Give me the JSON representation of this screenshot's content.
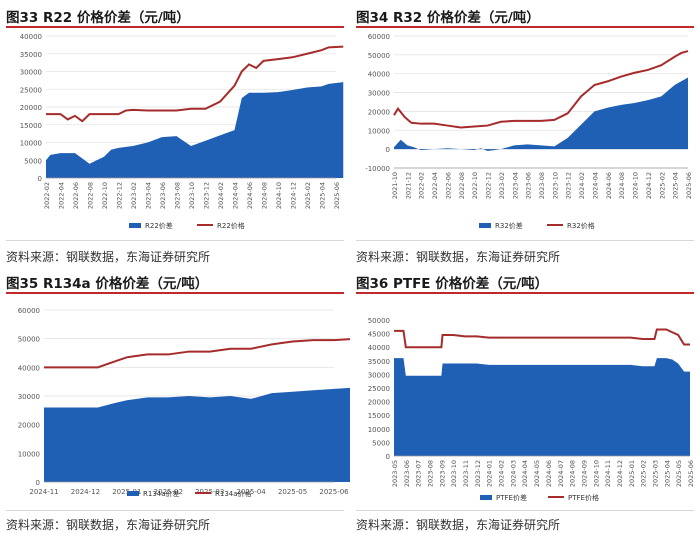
{
  "colors": {
    "area": "#1f5fb4",
    "line": "#a62b2b",
    "title_rule": "#c0292b"
  },
  "chart_data": [
    {
      "type": "area",
      "title": "图33  R22 价格价差（元/吨）",
      "source": "资料来源：钢联数据，东海证券研究所",
      "ylim": [
        0,
        40000
      ],
      "yticks": [
        "40000",
        "35000",
        "30000",
        "25000",
        "20000",
        "15000",
        "10000",
        "5000",
        "0"
      ],
      "xticks": [
        "2022-02",
        "2022-04",
        "2022-06",
        "2022-08",
        "2022-10",
        "2022-12",
        "2023-02",
        "2023-04",
        "2023-06",
        "2023-08",
        "2023-10",
        "2023-12",
        "2024-02",
        "2024-04",
        "2024-06",
        "2024-08",
        "2024-10",
        "2024-12",
        "2025-02",
        "2025-04",
        "2025-06"
      ],
      "grid": true,
      "legend_position": "bottom",
      "series": [
        {
          "name": "R22价差",
          "kind": "area",
          "x": [
            0,
            0.3,
            1,
            2,
            3,
            4,
            4.5,
            5,
            6,
            7,
            8,
            9,
            10,
            11,
            12,
            13,
            13.5,
            14,
            15,
            16,
            17,
            18,
            19,
            19.5,
            20.5
          ],
          "values": [
            5000,
            6500,
            7000,
            7000,
            4000,
            6000,
            8000,
            8500,
            9000,
            10000,
            11500,
            11800,
            9000,
            10500,
            12000,
            13500,
            22500,
            24000,
            24000,
            24200,
            24800,
            25500,
            25800,
            26500,
            27000
          ]
        },
        {
          "name": "R22价格",
          "kind": "line",
          "x": [
            0,
            1,
            1.5,
            2,
            2.5,
            3,
            4,
            5,
            5.5,
            6,
            7,
            8,
            9,
            10,
            11,
            12,
            13,
            13.5,
            14,
            14.5,
            15,
            16,
            17,
            18,
            19,
            19.5,
            20.5
          ],
          "values": [
            18000,
            18000,
            16500,
            17500,
            16000,
            18000,
            18000,
            18000,
            19000,
            19200,
            19000,
            19000,
            19000,
            19500,
            19500,
            21500,
            26000,
            30000,
            32000,
            31000,
            33000,
            33500,
            34000,
            35000,
            36000,
            36800,
            37000
          ]
        }
      ]
    },
    {
      "type": "area",
      "title": "图34  R32 价格价差（元/吨）",
      "source": "资料来源：钢联数据，东海证券研究所",
      "ylim": [
        -10000,
        60000
      ],
      "yticks": [
        "60000",
        "50000",
        "40000",
        "30000",
        "20000",
        "10000",
        "0",
        "-10000"
      ],
      "xticks": [
        "2021-10",
        "2021-12",
        "2022-02",
        "2022-04",
        "2022-06",
        "2022-08",
        "2022-10",
        "2022-12",
        "2023-02",
        "2023-04",
        "2023-06",
        "2023-08",
        "2023-10",
        "2023-12",
        "2024-02",
        "2024-04",
        "2024-06",
        "2024-08",
        "2024-10",
        "2024-12",
        "2025-02",
        "2025-04",
        "2025-06"
      ],
      "grid": true,
      "legend_position": "bottom",
      "series": [
        {
          "name": "R32价差",
          "kind": "area",
          "x": [
            0,
            0.5,
            1,
            1.5,
            2,
            3,
            4,
            5,
            6,
            6.5,
            7,
            7.5,
            8,
            9,
            10,
            11,
            12,
            13,
            14,
            15,
            16,
            17,
            18,
            19,
            20,
            21,
            22
          ],
          "values": [
            1000,
            5000,
            2000,
            1000,
            -500,
            0,
            500,
            0,
            -500,
            500,
            -1000,
            -500,
            0,
            2000,
            2500,
            2000,
            1500,
            6000,
            13000,
            20000,
            22000,
            23500,
            24500,
            26000,
            28000,
            34000,
            38000
          ]
        },
        {
          "name": "R32价格",
          "kind": "line",
          "x": [
            0,
            0.3,
            0.8,
            1.3,
            2,
            3,
            4,
            5,
            6,
            7,
            8,
            9,
            10,
            11,
            12,
            13,
            14,
            15,
            16,
            17,
            18,
            19,
            20,
            21,
            21.5,
            22
          ],
          "values": [
            18000,
            21500,
            17000,
            14000,
            13500,
            13500,
            12500,
            11500,
            12000,
            12500,
            14500,
            15000,
            15000,
            15000,
            15500,
            19000,
            28000,
            34000,
            36000,
            38500,
            40500,
            42000,
            44500,
            49000,
            51000,
            52000
          ]
        }
      ]
    },
    {
      "type": "area",
      "title": "图35  R134a 价格价差（元/吨）",
      "source": "资料来源：钢联数据，东海证券研究所",
      "ylim": [
        0,
        60000
      ],
      "yticks": [
        "60000",
        "50000",
        "40000",
        "30000",
        "20000",
        "10000",
        "0"
      ],
      "xticks": [
        "2024-11",
        "2024-12",
        "2025-01",
        "2025-02",
        "2025-03",
        "2025-04",
        "2025-05",
        "2025-06"
      ],
      "grid": true,
      "legend_position": "bottom",
      "series": [
        {
          "name": "R134a价差",
          "kind": "area",
          "x": [
            0,
            0.5,
            1,
            1.3,
            1.7,
            2,
            2.5,
            3,
            3.5,
            4,
            4.5,
            5,
            5.5,
            6,
            6.5,
            7,
            7.6
          ],
          "values": [
            26000,
            26000,
            26000,
            26000,
            27500,
            28500,
            29500,
            29500,
            30000,
            29500,
            30000,
            29000,
            31000,
            31500,
            32000,
            32500,
            33000
          ]
        },
        {
          "name": "R134a价格",
          "kind": "line",
          "x": [
            0,
            0.5,
            1,
            1.3,
            1.7,
            2,
            2.5,
            3,
            3.5,
            4,
            4.5,
            5,
            5.5,
            6,
            6.5,
            7,
            7.6
          ],
          "values": [
            40000,
            40000,
            40000,
            40000,
            42000,
            43500,
            44500,
            44500,
            45500,
            45500,
            46500,
            46500,
            48000,
            49000,
            49500,
            49500,
            50000
          ]
        }
      ]
    },
    {
      "type": "area",
      "title": "图36  PTFE 价格价差（元/吨）",
      "source": "资料来源：钢联数据，东海证券研究所",
      "ylim": [
        0,
        50000
      ],
      "yticks": [
        "50000",
        "45000",
        "40000",
        "35000",
        "30000",
        "25000",
        "20000",
        "15000",
        "10000",
        "5000",
        "0"
      ],
      "xticks": [
        "2023-05",
        "2023-06",
        "2023-07",
        "2023-08",
        "2023-09",
        "2023-10",
        "2023-11",
        "2023-12",
        "2024-01",
        "2024-02",
        "2024-03",
        "2024-04",
        "2024-05",
        "2024-06",
        "2024-07",
        "2024-08",
        "2024-09",
        "2024-10",
        "2024-11",
        "2024-12",
        "2025-01",
        "2025-02",
        "2025-03",
        "2025-04",
        "2025-05",
        "2025-06"
      ],
      "grid": false,
      "legend_position": "bottom",
      "series": [
        {
          "name": "PTFE价差",
          "kind": "area",
          "x": [
            0,
            0.8,
            1,
            2,
            3,
            4,
            4.1,
            5,
            6,
            7,
            8,
            9,
            10,
            12,
            14,
            16,
            18,
            20,
            21,
            22,
            22.2,
            23,
            23.5,
            24,
            24.5,
            25
          ],
          "values": [
            36000,
            36000,
            29500,
            29500,
            29500,
            29500,
            34000,
            34000,
            34000,
            34000,
            33500,
            33500,
            33500,
            33500,
            33500,
            33500,
            33500,
            33500,
            33000,
            33000,
            36000,
            36000,
            35500,
            34000,
            31000,
            31000
          ]
        },
        {
          "name": "PTFE价格",
          "kind": "line",
          "x": [
            0,
            0.8,
            1,
            2,
            3,
            4,
            4.1,
            5,
            6,
            7,
            8,
            10,
            12,
            14,
            16,
            18,
            20,
            21,
            22,
            22.2,
            23,
            23.5,
            24,
            24.5,
            25
          ],
          "values": [
            46000,
            46000,
            40000,
            40000,
            40000,
            40000,
            44500,
            44500,
            44000,
            44000,
            43500,
            43500,
            43500,
            43500,
            43500,
            43500,
            43500,
            43000,
            43000,
            46500,
            46500,
            45500,
            44500,
            41000,
            41000
          ]
        }
      ]
    }
  ]
}
